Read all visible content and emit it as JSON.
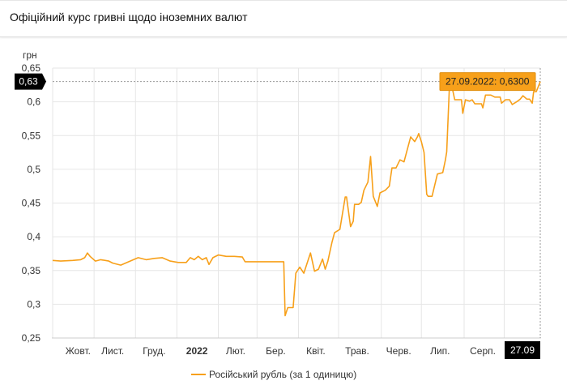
{
  "header": {
    "title": "Офіційний курс гривні щодо іноземних валют"
  },
  "chart_data": {
    "type": "line",
    "title": "Офіційний курс гривні щодо іноземних валют",
    "ylabel": "грн",
    "ylim": [
      0.25,
      0.65
    ],
    "yticks": [
      0.25,
      0.3,
      0.35,
      0.4,
      0.45,
      0.5,
      0.55,
      0.6,
      0.65
    ],
    "ytick_labels": [
      "0,25",
      "0,3",
      "0,35",
      "0,4",
      "0,45",
      "0,5",
      "0,55",
      "0,6",
      "0,65"
    ],
    "x_unit": "days since 27.09.2021",
    "xlim": [
      0,
      365
    ],
    "xticks": [
      {
        "x": 19,
        "label": "Жовт."
      },
      {
        "x": 45,
        "label": "Лист."
      },
      {
        "x": 76,
        "label": "Груд."
      },
      {
        "x": 108,
        "label": "2022",
        "bold": true
      },
      {
        "x": 137,
        "label": "Лют."
      },
      {
        "x": 167,
        "label": "Бер."
      },
      {
        "x": 197,
        "label": "Квіт."
      },
      {
        "x": 228,
        "label": "Трав."
      },
      {
        "x": 259,
        "label": "Черв."
      },
      {
        "x": 290,
        "label": "Лип."
      },
      {
        "x": 322,
        "label": "Серп."
      }
    ],
    "gridlines_x": [
      31,
      62,
      93,
      124,
      153,
      184,
      214,
      246,
      276,
      308,
      338
    ],
    "grid": true,
    "legend_position": "bottom-center",
    "series": [
      {
        "name": "Російський рубль (за 1 одиницю)",
        "color": "#f7a01a",
        "points": [
          [
            0,
            0.365
          ],
          [
            6,
            0.364
          ],
          [
            15,
            0.365
          ],
          [
            21,
            0.366
          ],
          [
            24,
            0.369
          ],
          [
            26,
            0.376
          ],
          [
            28,
            0.371
          ],
          [
            32,
            0.364
          ],
          [
            36,
            0.366
          ],
          [
            42,
            0.364
          ],
          [
            45,
            0.361
          ],
          [
            51,
            0.358
          ],
          [
            58,
            0.364
          ],
          [
            64,
            0.369
          ],
          [
            70,
            0.366
          ],
          [
            76,
            0.368
          ],
          [
            82,
            0.369
          ],
          [
            88,
            0.364
          ],
          [
            94,
            0.362
          ],
          [
            100,
            0.362
          ],
          [
            103,
            0.369
          ],
          [
            106,
            0.366
          ],
          [
            109,
            0.371
          ],
          [
            112,
            0.366
          ],
          [
            115,
            0.369
          ],
          [
            117,
            0.359
          ],
          [
            120,
            0.369
          ],
          [
            124,
            0.373
          ],
          [
            130,
            0.371
          ],
          [
            136,
            0.371
          ],
          [
            142,
            0.37
          ],
          [
            144,
            0.363
          ],
          [
            173,
            0.363
          ],
          [
            174,
            0.283
          ],
          [
            176,
            0.295
          ],
          [
            180,
            0.295
          ],
          [
            182,
            0.346
          ],
          [
            185,
            0.355
          ],
          [
            188,
            0.346
          ],
          [
            191,
            0.364
          ],
          [
            193,
            0.376
          ],
          [
            196,
            0.349
          ],
          [
            199,
            0.352
          ],
          [
            202,
            0.367
          ],
          [
            204,
            0.352
          ],
          [
            206,
            0.364
          ],
          [
            209,
            0.391
          ],
          [
            211,
            0.406
          ],
          [
            215,
            0.411
          ],
          [
            219,
            0.459
          ],
          [
            220,
            0.459
          ],
          [
            223,
            0.415
          ],
          [
            225,
            0.423
          ],
          [
            226,
            0.448
          ],
          [
            229,
            0.448
          ],
          [
            231,
            0.451
          ],
          [
            233,
            0.469
          ],
          [
            236,
            0.481
          ],
          [
            238,
            0.519
          ],
          [
            240,
            0.46
          ],
          [
            243,
            0.445
          ],
          [
            245,
            0.465
          ],
          [
            249,
            0.469
          ],
          [
            252,
            0.475
          ],
          [
            254,
            0.502
          ],
          [
            257,
            0.502
          ],
          [
            260,
            0.514
          ],
          [
            263,
            0.511
          ],
          [
            265,
            0.526
          ],
          [
            268,
            0.548
          ],
          [
            271,
            0.541
          ],
          [
            273,
            0.548
          ],
          [
            274,
            0.553
          ],
          [
            276,
            0.541
          ],
          [
            278,
            0.525
          ],
          [
            280,
            0.463
          ],
          [
            281,
            0.46
          ],
          [
            284,
            0.46
          ],
          [
            288,
            0.493
          ],
          [
            292,
            0.495
          ],
          [
            294,
            0.514
          ],
          [
            295,
            0.526
          ],
          [
            297,
            0.622
          ],
          [
            298,
            0.631
          ],
          [
            301,
            0.603
          ],
          [
            306,
            0.603
          ],
          [
            307,
            0.583
          ],
          [
            309,
            0.603
          ],
          [
            312,
            0.601
          ],
          [
            314,
            0.603
          ],
          [
            316,
            0.597
          ],
          [
            321,
            0.597
          ],
          [
            322,
            0.591
          ],
          [
            324,
            0.61
          ],
          [
            328,
            0.61
          ],
          [
            331,
            0.607
          ],
          [
            335,
            0.607
          ],
          [
            336,
            0.598
          ],
          [
            339,
            0.603
          ],
          [
            342,
            0.603
          ],
          [
            344,
            0.596
          ],
          [
            348,
            0.601
          ],
          [
            350,
            0.604
          ],
          [
            352,
            0.609
          ],
          [
            355,
            0.604
          ],
          [
            357,
            0.604
          ],
          [
            359,
            0.598
          ],
          [
            360,
            0.615
          ],
          [
            362,
            0.615
          ],
          [
            365,
            0.63
          ]
        ]
      }
    ],
    "crosshair": {
      "y_label": "0,63",
      "x_label": "27.09",
      "tooltip": "27.09.2022: 0,6300",
      "value": 0.63,
      "x": 365
    }
  }
}
